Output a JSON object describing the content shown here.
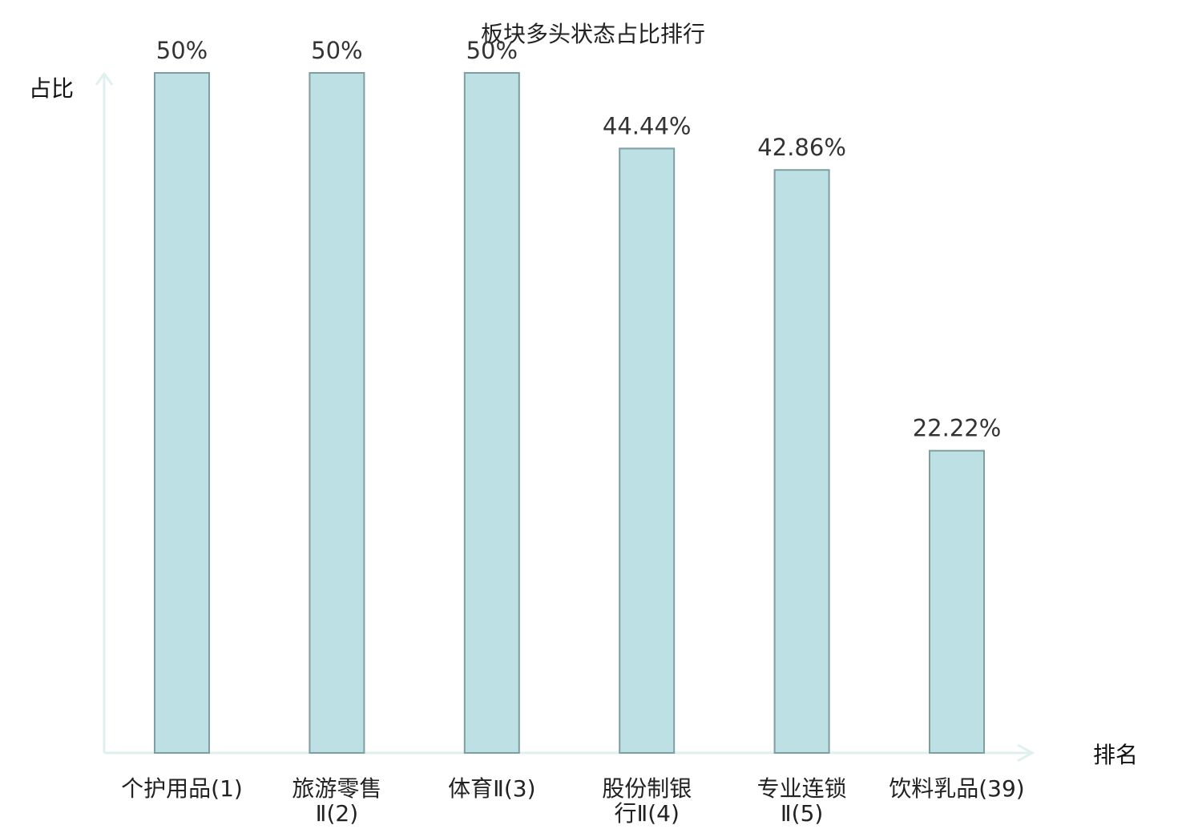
{
  "chart_data": {
    "type": "bar",
    "title": "板块多头状态占比排行",
    "xlabel": "排名",
    "ylabel": "占比",
    "ylim": [
      0,
      50
    ],
    "grid": false,
    "categories": [
      [
        "个护用品(1)"
      ],
      [
        "旅游零售",
        "Ⅱ(2)"
      ],
      [
        "体育Ⅱ(3)"
      ],
      [
        "股份制银",
        "行Ⅱ(4)"
      ],
      [
        "专业连锁",
        "Ⅱ(5)"
      ],
      [
        "饮料乳品(39)"
      ]
    ],
    "values": [
      50,
      50,
      50,
      44.44,
      42.86,
      22.22
    ],
    "value_labels": [
      "50%",
      "50%",
      "50%",
      "44.44%",
      "42.86%",
      "22.22%"
    ],
    "highlight_index": 5,
    "colors": {
      "bar_fill": "#bce0e3",
      "bar_stroke": "#7f9ea1",
      "axis": "#dff1ef",
      "highlight_text": "#e0161b",
      "label_text": "#222222",
      "value_text": "#333333"
    }
  }
}
